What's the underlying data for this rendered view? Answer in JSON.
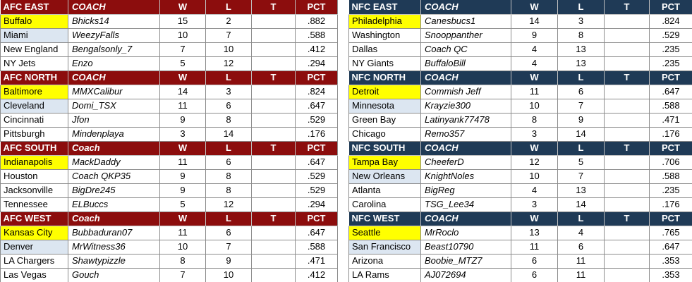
{
  "columns": {
    "wins": "W",
    "losses": "L",
    "ties": "T",
    "pct": "PCT"
  },
  "colors": {
    "afc_header": "#8C0D0D",
    "nfc_header": "#1F3A56",
    "header_text": "#FFFFFF",
    "leader_highlight": "#FFFF00",
    "runnerup_highlight": "#DCE6F1",
    "grid_line": "#8C8C8C",
    "header_grid_line": "#C0C0C0"
  },
  "conferences": [
    {
      "id": "afc",
      "header_color": "#8C0D0D",
      "divisions": [
        {
          "title": "AFC EAST",
          "coach_label": "COACH",
          "teams": [
            {
              "team": "Buffalo",
              "coach": "Bhicks14",
              "wins": "15",
              "losses": "2",
              "ties": "",
              "pct": ".882",
              "highlight": "leader"
            },
            {
              "team": "Miami",
              "coach": "WeezyFalls",
              "wins": "10",
              "losses": "7",
              "ties": "",
              "pct": ".588",
              "highlight": "runnerup"
            },
            {
              "team": "New England",
              "coach": "Bengalsonly_7",
              "wins": "7",
              "losses": "10",
              "ties": "",
              "pct": ".412",
              "highlight": "none"
            },
            {
              "team": "NY Jets",
              "coach": "Enzo",
              "wins": "5",
              "losses": "12",
              "ties": "",
              "pct": ".294",
              "highlight": "none"
            }
          ]
        },
        {
          "title": "AFC NORTH",
          "coach_label": "COACH",
          "teams": [
            {
              "team": "Baltimore",
              "coach": "MMXCalibur",
              "wins": "14",
              "losses": "3",
              "ties": "",
              "pct": ".824",
              "highlight": "leader"
            },
            {
              "team": "Cleveland",
              "coach": "Domi_TSX",
              "wins": "11",
              "losses": "6",
              "ties": "",
              "pct": ".647",
              "highlight": "runnerup"
            },
            {
              "team": "Cincinnati",
              "coach": "Jfon",
              "wins": "9",
              "losses": "8",
              "ties": "",
              "pct": ".529",
              "highlight": "none"
            },
            {
              "team": "Pittsburgh",
              "coach": "Mindenplaya",
              "wins": "3",
              "losses": "14",
              "ties": "",
              "pct": ".176",
              "highlight": "none"
            }
          ]
        },
        {
          "title": "AFC SOUTH",
          "coach_label": "Coach",
          "teams": [
            {
              "team": "Indianapolis",
              "coach": "MackDaddy",
              "wins": "11",
              "losses": "6",
              "ties": "",
              "pct": ".647",
              "highlight": "leader"
            },
            {
              "team": "Houston",
              "coach": "Coach QKP35",
              "wins": "9",
              "losses": "8",
              "ties": "",
              "pct": ".529",
              "highlight": "none"
            },
            {
              "team": "Jacksonville",
              "coach": "BigDre245",
              "wins": "9",
              "losses": "8",
              "ties": "",
              "pct": ".529",
              "highlight": "none"
            },
            {
              "team": "Tennessee",
              "coach": "ELBuccs",
              "wins": "5",
              "losses": "12",
              "ties": "",
              "pct": ".294",
              "highlight": "none"
            }
          ]
        },
        {
          "title": "AFC WEST",
          "coach_label": "Coach",
          "teams": [
            {
              "team": "Kansas City",
              "coach": "Bubbaduran07",
              "wins": "11",
              "losses": "6",
              "ties": "",
              "pct": ".647",
              "highlight": "leader"
            },
            {
              "team": "Denver",
              "coach": "MrWitness36",
              "wins": "10",
              "losses": "7",
              "ties": "",
              "pct": ".588",
              "highlight": "runnerup"
            },
            {
              "team": "LA Chargers",
              "coach": "Shawtypizzle",
              "wins": "8",
              "losses": "9",
              "ties": "",
              "pct": ".471",
              "highlight": "none"
            },
            {
              "team": "Las Vegas",
              "coach": "Gouch",
              "wins": "7",
              "losses": "10",
              "ties": "",
              "pct": ".412",
              "highlight": "none"
            }
          ]
        }
      ]
    },
    {
      "id": "nfc",
      "header_color": "#1F3A56",
      "divisions": [
        {
          "title": "NFC EAST",
          "coach_label": "COACH",
          "teams": [
            {
              "team": "Philadelphia",
              "coach": "Canesbucs1",
              "wins": "14",
              "losses": "3",
              "ties": "",
              "pct": ".824",
              "highlight": "leader"
            },
            {
              "team": "Washington",
              "coach": "Snooppanther",
              "wins": "9",
              "losses": "8",
              "ties": "",
              "pct": ".529",
              "highlight": "none"
            },
            {
              "team": "Dallas",
              "coach": "Coach QC",
              "wins": "4",
              "losses": "13",
              "ties": "",
              "pct": ".235",
              "highlight": "none"
            },
            {
              "team": "NY Giants",
              "coach": "BuffaloBill",
              "wins": "4",
              "losses": "13",
              "ties": "",
              "pct": ".235",
              "highlight": "none"
            }
          ]
        },
        {
          "title": "NFC NORTH",
          "coach_label": "COACH",
          "teams": [
            {
              "team": "Detroit",
              "coach": "Commish Jeff",
              "wins": "11",
              "losses": "6",
              "ties": "",
              "pct": ".647",
              "highlight": "leader"
            },
            {
              "team": "Minnesota",
              "coach": "Krayzie300",
              "wins": "10",
              "losses": "7",
              "ties": "",
              "pct": ".588",
              "highlight": "runnerup"
            },
            {
              "team": "Green Bay",
              "coach": "Latinyank77478",
              "wins": "8",
              "losses": "9",
              "ties": "",
              "pct": ".471",
              "highlight": "none"
            },
            {
              "team": "Chicago",
              "coach": "Remo357",
              "wins": "3",
              "losses": "14",
              "ties": "",
              "pct": ".176",
              "highlight": "none"
            }
          ]
        },
        {
          "title": "NFC SOUTH",
          "coach_label": "COACH",
          "teams": [
            {
              "team": "Tampa Bay",
              "coach": "CheeferD",
              "wins": "12",
              "losses": "5",
              "ties": "",
              "pct": ".706",
              "highlight": "leader"
            },
            {
              "team": "New Orleans",
              "coach": "KnightNoles",
              "wins": "10",
              "losses": "7",
              "ties": "",
              "pct": ".588",
              "highlight": "runnerup"
            },
            {
              "team": "Atlanta",
              "coach": "BigReg",
              "wins": "4",
              "losses": "13",
              "ties": "",
              "pct": ".235",
              "highlight": "none"
            },
            {
              "team": "Carolina",
              "coach": "TSG_Lee34",
              "wins": "3",
              "losses": "14",
              "ties": "",
              "pct": ".176",
              "highlight": "none"
            }
          ]
        },
        {
          "title": "NFC WEST",
          "coach_label": "COACH",
          "teams": [
            {
              "team": "Seattle",
              "coach": "MrRoclo",
              "wins": "13",
              "losses": "4",
              "ties": "",
              "pct": ".765",
              "highlight": "leader"
            },
            {
              "team": "San Francisco",
              "coach": "Beast10790",
              "wins": "11",
              "losses": "6",
              "ties": "",
              "pct": ".647",
              "highlight": "runnerup"
            },
            {
              "team": "Arizona",
              "coach": "Boobie_MTZ7",
              "wins": "6",
              "losses": "11",
              "ties": "",
              "pct": ".353",
              "highlight": "none"
            },
            {
              "team": "LA Rams",
              "coach": "AJ072694",
              "wins": "6",
              "losses": "11",
              "ties": "",
              "pct": ".353",
              "highlight": "none"
            }
          ]
        }
      ]
    }
  ]
}
